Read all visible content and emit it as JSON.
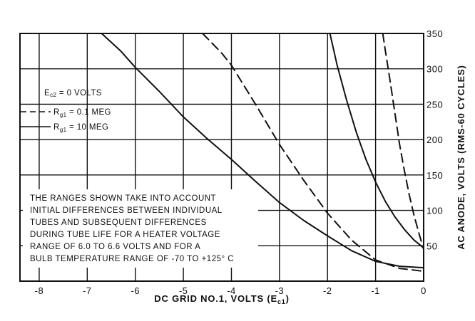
{
  "chart_data": {
    "type": "line",
    "xlabel": "DC GRID NO.1, VOLTS (E",
    "xlabel_sub": "c1",
    "xlabel_close": ")",
    "ylabel": "AC ANODE, VOLTS (RMS-60 CYCLES)",
    "xlim": [
      -8.4,
      0
    ],
    "ylim": [
      0,
      350
    ],
    "x_ticks": [
      -8,
      -7,
      -6,
      -5,
      -4,
      -3,
      -2,
      -1,
      0
    ],
    "x_tick_labels": [
      "-8",
      "-7",
      "-6",
      "-5",
      "-4",
      "-3",
      "-2",
      "-1",
      "0"
    ],
    "y_ticks": [
      50,
      100,
      150,
      200,
      250,
      300,
      350
    ],
    "y_tick_labels": [
      "50",
      "100",
      "150",
      "200",
      "250",
      "300",
      "350"
    ],
    "grid": true,
    "legend": {
      "title_prefix": "E",
      "title_sub": "c2",
      "title_suffix": " = 0 VOLTS",
      "entries": [
        {
          "prefix": "R",
          "sub": "g1",
          "suffix": " = 0.1 MEG",
          "style": "dashed"
        },
        {
          "prefix": "R",
          "sub": "g1",
          "suffix": " = 10 MEG",
          "style": "solid"
        }
      ]
    },
    "annotation": [
      "THE RANGES SHOWN TAKE INTO ACCOUNT",
      "INITIAL DIFFERENCES BETWEEN INDIVIDUAL",
      "TUBES AND SUBSEQUENT DIFFERENCES",
      "DURING TUBE LIFE FOR A HEATER VOLTAGE",
      "RANGE OF 6.0 TO 6.6 VOLTS AND FOR A",
      "BULB TEMPERATURE RANGE OF -70 TO +125° C"
    ],
    "series": [
      {
        "style": "solid",
        "x": [
          -6.7,
          -6.3,
          -6.0,
          -5.5,
          -5.0,
          -4.5,
          -4.0,
          -3.5,
          -3.0,
          -2.5,
          -2.0,
          -1.5,
          -1.0,
          -0.5,
          0.0
        ],
        "y": [
          350,
          325,
          302,
          268,
          232,
          201,
          172,
          141,
          111,
          86,
          64,
          43,
          28,
          21,
          19
        ]
      },
      {
        "style": "dashed",
        "x": [
          -4.6,
          -4.2,
          -4.0,
          -3.5,
          -3.0,
          -2.5,
          -2.0,
          -1.5,
          -1.0,
          -0.5,
          0.0
        ],
        "y": [
          350,
          322,
          305,
          250,
          193,
          143,
          96,
          58,
          30,
          18,
          14
        ]
      },
      {
        "style": "solid",
        "x": [
          -1.95,
          -1.8,
          -1.6,
          -1.4,
          -1.2,
          -1.0,
          -0.8,
          -0.6,
          -0.4,
          -0.2,
          0.0
        ],
        "y": [
          350,
          305,
          255,
          210,
          172,
          140,
          113,
          91,
          73,
          58,
          47
        ]
      },
      {
        "style": "dashed",
        "x": [
          -0.85,
          -0.8,
          -0.7,
          -0.6,
          -0.5,
          -0.4,
          -0.3,
          -0.2,
          -0.1,
          0.0
        ],
        "y": [
          350,
          327,
          284,
          238,
          193,
          156,
          122,
          93,
          68,
          45
        ]
      }
    ]
  }
}
